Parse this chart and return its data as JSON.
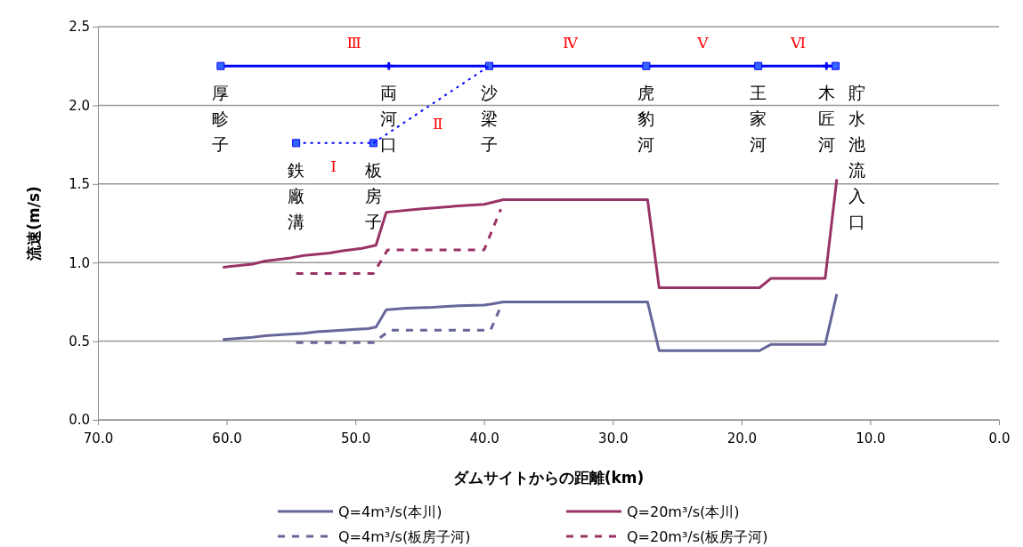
{
  "chart_data": {
    "type": "line",
    "xlabel": "ダムサイトからの距離(km)",
    "ylabel": "流速(m/s)",
    "xlim": [
      70,
      0
    ],
    "xticks": [
      {
        "value": 70,
        "label": "70.0"
      },
      {
        "value": 60,
        "label": "60.0"
      },
      {
        "value": 50,
        "label": "50.0"
      },
      {
        "value": 40,
        "label": "40.0"
      },
      {
        "value": 30,
        "label": "30.0"
      },
      {
        "value": 20,
        "label": "20.0"
      },
      {
        "value": 10,
        "label": "10.0"
      },
      {
        "value": 0,
        "label": "0.0"
      }
    ],
    "ylim": [
      0,
      2.5
    ],
    "yticks": [
      {
        "value": 0,
        "label": "0.0"
      },
      0.5,
      {
        "value": 1,
        "label": "1.0"
      },
      1.5,
      {
        "value": 2,
        "label": "2.0"
      },
      2.5
    ],
    "grid": "y",
    "legend": "bottom",
    "marker": "none",
    "line_style": "solid",
    "series": [
      {
        "name": "Q=4m³/s(本川)",
        "color": "#666699",
        "x": [
          60.3,
          58,
          57,
          56,
          54,
          53,
          51,
          50,
          49,
          48.4,
          47.6,
          46,
          44,
          42,
          40,
          39.5,
          38.5,
          27.3,
          26.4,
          18.6,
          17.7,
          13.5,
          12.6
        ],
        "values": [
          0.51,
          0.525,
          0.535,
          0.54,
          0.55,
          0.56,
          0.57,
          0.575,
          0.58,
          0.59,
          0.7,
          0.71,
          0.715,
          0.725,
          0.73,
          0.735,
          0.75,
          0.75,
          0.44,
          0.44,
          0.48,
          0.48,
          0.8
        ]
      },
      {
        "name": "Q=20m³/s(本川)",
        "color": "#993366",
        "x": [
          60.3,
          58,
          57,
          55,
          54,
          52,
          51,
          49.5,
          48.4,
          47.6,
          45,
          42,
          40,
          39.5,
          38.5,
          27.3,
          26.4,
          18.6,
          17.7,
          13.5,
          12.6
        ],
        "values": [
          0.97,
          0.99,
          1.01,
          1.03,
          1.045,
          1.06,
          1.075,
          1.09,
          1.11,
          1.32,
          1.34,
          1.36,
          1.37,
          1.38,
          1.4,
          1.4,
          0.84,
          0.84,
          0.9,
          0.9,
          1.53
        ]
      },
      {
        "name": "Q=4m³/s(板房子河)",
        "color": "#666699",
        "line_style": "dashed",
        "x": [
          54.6,
          48.6,
          47.3,
          39.5,
          38.6
        ],
        "values": [
          0.49,
          0.49,
          0.57,
          0.57,
          0.74
        ]
      },
      {
        "name": "Q=20m³/s(板房子河)",
        "color": "#993366",
        "line_style": "dashed",
        "x": [
          54.6,
          48.6,
          47.5,
          40,
          38.7
        ],
        "values": [
          0.93,
          0.93,
          1.08,
          1.08,
          1.34
        ]
      },
      {
        "color": "#0000ff",
        "marker": "square",
        "x": [
          60.46,
          39.6,
          27.4,
          18.7,
          12.7
        ],
        "values": [
          2.25,
          2.25,
          2.25,
          2.25,
          2.25
        ]
      },
      {
        "type": "scatter",
        "color": "#0000ff",
        "marker": "cross",
        "x": [
          47.4,
          13.4
        ],
        "values": [
          2.25,
          2.25
        ]
      },
      {
        "color": "#0000ff",
        "marker": "square",
        "line_style": "dotted",
        "x": [
          54.6,
          48.6
        ],
        "values": [
          1.76,
          1.76
        ]
      },
      {
        "color": "#0000ff",
        "line_style": "dotted",
        "x": [
          48.6,
          39.6
        ],
        "values": [
          1.76,
          2.25
        ]
      }
    ],
    "annotations": [
      {
        "text": "厚畛子",
        "x": 60.46,
        "y": 2.25
      },
      {
        "text": "両河口",
        "x": 47.4,
        "y": 2.25
      },
      {
        "text": "沙梁子",
        "x": 39.6,
        "y": 2.25
      },
      {
        "text": "虎豹河",
        "x": 27.4,
        "y": 2.25
      },
      {
        "text": "王家河",
        "x": 18.7,
        "y": 2.25
      },
      {
        "text": "木匠河",
        "x": 13.4,
        "y": 2.25
      },
      {
        "text": "貯水池流入口",
        "x": 12.7,
        "y": 2.25
      },
      {
        "text": "鉄廠溝",
        "x": 54.6,
        "y": 1.76
      },
      {
        "text": "板房子",
        "x": 48.6,
        "y": 1.76
      },
      {
        "text": "Ⅲ",
        "x": 50.1,
        "y": 2.25
      },
      {
        "text": "Ⅳ",
        "x": 33.3,
        "y": 2.25
      },
      {
        "text": "Ⅴ",
        "x": 23.0,
        "y": 2.25
      },
      {
        "text": "Ⅵ",
        "x": 15.6,
        "y": 2.25
      },
      {
        "text": "Ⅰ",
        "x": 51.7,
        "y": 1.76
      },
      {
        "text": "Ⅱ",
        "x": 43.6,
        "y": 2.03
      }
    ]
  }
}
